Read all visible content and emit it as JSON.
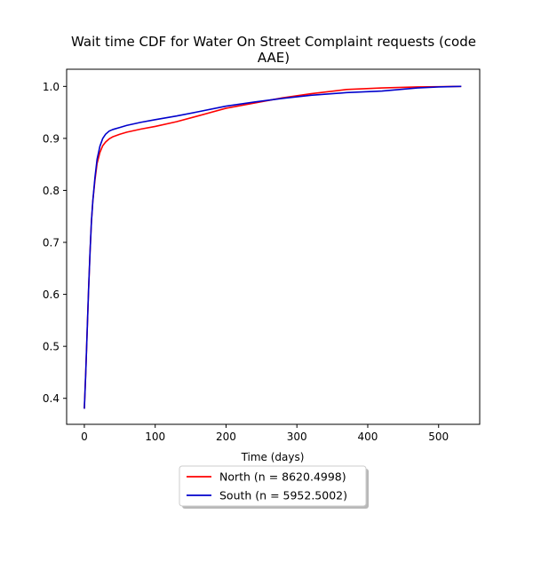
{
  "chart_data": {
    "type": "line",
    "title_lines": [
      "Wait time CDF for Water On Street Complaint  requests (code",
      "AAE)"
    ],
    "xlabel": "Time (days)",
    "ylabel": "",
    "xlim": [
      -25,
      558
    ],
    "ylim": [
      0.35,
      1.033
    ],
    "xticks": [
      0,
      100,
      200,
      300,
      400,
      500
    ],
    "xtick_labels": [
      "0",
      "100",
      "200",
      "300",
      "400",
      "500"
    ],
    "yticks": [
      0.4,
      0.5,
      0.6,
      0.7,
      0.8,
      0.9,
      1.0
    ],
    "ytick_labels": [
      "0.4",
      "0.5",
      "0.6",
      "0.7",
      "0.8",
      "0.9",
      "1.0"
    ],
    "grid": false,
    "legend_position": "below-center",
    "series": [
      {
        "name": "North (n = 8620.4998)",
        "color": "#ff0000",
        "x": [
          0,
          2,
          4,
          6,
          8,
          10,
          12,
          15,
          18,
          22,
          26,
          30,
          35,
          40,
          50,
          60,
          80,
          100,
          130,
          160,
          200,
          240,
          280,
          320,
          370,
          420,
          470,
          500,
          532
        ],
        "y": [
          0.38,
          0.45,
          0.53,
          0.61,
          0.68,
          0.74,
          0.78,
          0.82,
          0.852,
          0.873,
          0.886,
          0.893,
          0.899,
          0.903,
          0.908,
          0.912,
          0.918,
          0.923,
          0.932,
          0.943,
          0.958,
          0.968,
          0.978,
          0.986,
          0.994,
          0.997,
          0.999,
          0.9995,
          1.0
        ]
      },
      {
        "name": "South (n = 5952.5002)",
        "color": "#0000cc",
        "x": [
          0,
          2,
          4,
          6,
          8,
          10,
          12,
          15,
          18,
          22,
          26,
          30,
          35,
          40,
          50,
          60,
          80,
          100,
          130,
          160,
          200,
          240,
          280,
          320,
          370,
          420,
          470,
          500,
          532
        ],
        "y": [
          0.38,
          0.45,
          0.53,
          0.61,
          0.68,
          0.74,
          0.78,
          0.825,
          0.86,
          0.885,
          0.9,
          0.908,
          0.914,
          0.917,
          0.921,
          0.925,
          0.931,
          0.936,
          0.943,
          0.951,
          0.962,
          0.97,
          0.977,
          0.983,
          0.988,
          0.991,
          0.997,
          0.999,
          1.0
        ]
      }
    ]
  }
}
